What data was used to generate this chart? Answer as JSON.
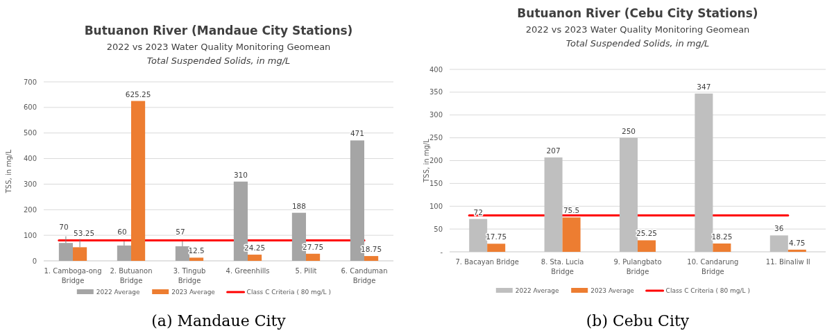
{
  "chart_data": [
    {
      "type": "bar",
      "title": "Butuanon River (Mandaue City Stations)",
      "subtitle": "2022 vs 2023 Water Quality Monitoring Geomean",
      "ylabel": "TSS, in mg/L",
      "annotations": [
        "Total Suspended Solids, in mg/L",
        "(a) Mandaue City"
      ],
      "categories": [
        "1. Camboga-ong Bridge",
        "2. Butuanon Bridge",
        "3. Tingub Bridge",
        "4. Greenhills",
        "5. Pilit",
        "6. Canduman Bridge"
      ],
      "series": [
        {
          "name": "2022 Average",
          "color": "#a5a5a5",
          "values": [
            70,
            60,
            57,
            310,
            188,
            471
          ],
          "errors": [
            [
              70,
              96
            ],
            [
              60,
              77
            ],
            [
              57,
              77
            ],
            null,
            null,
            null
          ]
        },
        {
          "name": "2023 Average",
          "color": "#ed7d31",
          "values": [
            53.25,
            625.25,
            12.5,
            24.25,
            27.75,
            18.75
          ],
          "errors": [
            [
              53.25,
              86
            ],
            null,
            null,
            null,
            null,
            null
          ]
        }
      ],
      "ref_lines": [
        {
          "axis": "y",
          "value": 80,
          "label": "Class C Criteria ( 80 mg/L )",
          "color": "#ff0000"
        }
      ],
      "ylim": [
        0,
        700
      ],
      "yticks": [
        0,
        100,
        200,
        300,
        400,
        500,
        600,
        700
      ],
      "grid": "y",
      "legend": "bottom",
      "data_labels": true
    },
    {
      "type": "bar",
      "title": "Butuanon River (Cebu City Stations)",
      "subtitle": "2022 vs 2023 Water Quality Monitoring Geomean",
      "ylabel": "TSS, in mg/L",
      "annotations": [
        "Total Suspended Solids, in mg/L",
        "(b) Cebu City"
      ],
      "categories": [
        "7. Bacayan Bridge",
        "8. Sta. Lucia Bridge",
        "9. Pulangbato Bridge",
        "10. Candarung Bridge",
        "11. Binaliw II"
      ],
      "series": [
        {
          "name": "2022 Average",
          "color": "#bfbfbf",
          "values": [
            72,
            207,
            250,
            347,
            36
          ]
        },
        {
          "name": "2023 Average",
          "color": "#ed7d31",
          "values": [
            17.75,
            75.5,
            25.25,
            18.25,
            4.75
          ]
        }
      ],
      "ref_lines": [
        {
          "axis": "y",
          "value": 80,
          "label": "Class C Criteria ( 80 mg/L )",
          "color": "#ff0000"
        }
      ],
      "ylim": [
        0,
        400
      ],
      "yticks": [
        {
          "value": 0,
          "label": "-"
        },
        50,
        100,
        150,
        200,
        250,
        300,
        350,
        400
      ],
      "grid": "y",
      "legend": "bottom",
      "data_labels": true
    }
  ]
}
